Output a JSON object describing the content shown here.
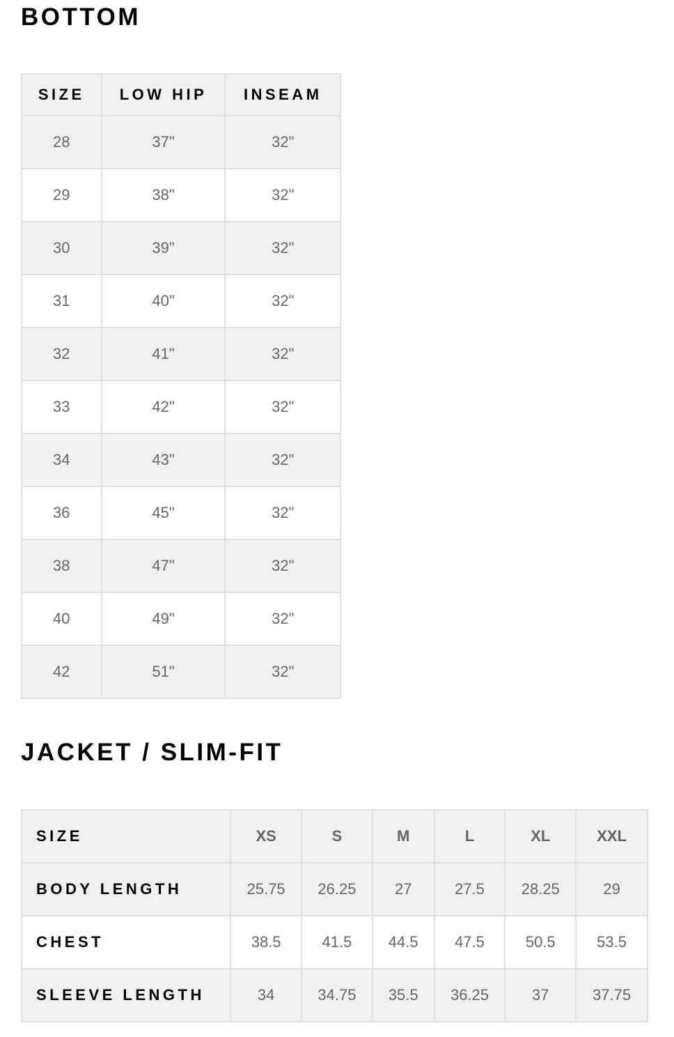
{
  "bottom": {
    "title": "BOTTOM",
    "headers": [
      "SIZE",
      "LOW HIP",
      "INSEAM"
    ],
    "rows": [
      [
        "28",
        "37\"",
        "32\""
      ],
      [
        "29",
        "38\"",
        "32\""
      ],
      [
        "30",
        "39\"",
        "32\""
      ],
      [
        "31",
        "40\"",
        "32\""
      ],
      [
        "32",
        "41\"",
        "32\""
      ],
      [
        "33",
        "42\"",
        "32\""
      ],
      [
        "34",
        "43\"",
        "32\""
      ],
      [
        "36",
        "45\"",
        "32\""
      ],
      [
        "38",
        "47\"",
        "32\""
      ],
      [
        "40",
        "49\"",
        "32\""
      ],
      [
        "42",
        "51\"",
        "32\""
      ]
    ]
  },
  "jacket": {
    "title": "JACKET / SLIM-FIT",
    "size_label": "SIZE",
    "sizes": [
      "XS",
      "S",
      "M",
      "L",
      "XL",
      "XXL"
    ],
    "rows": [
      {
        "label": "BODY LENGTH",
        "values": [
          "25.75",
          "26.25",
          "27",
          "27.5",
          "28.25",
          "29"
        ]
      },
      {
        "label": "CHEST",
        "values": [
          "38.5",
          "41.5",
          "44.5",
          "47.5",
          "50.5",
          "53.5"
        ]
      },
      {
        "label": "SLEEVE LENGTH",
        "values": [
          "34",
          "34.75",
          "35.5",
          "36.25",
          "37",
          "37.75"
        ]
      }
    ]
  },
  "colors": {
    "row_shade": "#f0f0f0",
    "border": "#e0e0e0",
    "value_text": "#666666",
    "heading_text": "#000000"
  }
}
